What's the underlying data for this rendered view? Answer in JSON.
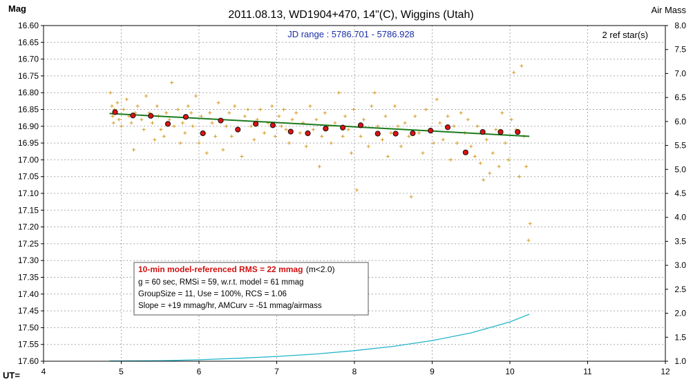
{
  "chart_data": {
    "type": "scatter",
    "title": "2011.08.13, WD1904+470, 14\"(C), Wiggins (Utah)",
    "ylabel": "Mag",
    "y2label": "Air Mass",
    "xlabel": "UT=",
    "xlim": [
      4,
      12
    ],
    "ylim": [
      17.6,
      16.6
    ],
    "y2lim": [
      1.0,
      8.0
    ],
    "x_ticks": [
      "4",
      "5",
      "6",
      "7",
      "8",
      "9",
      "10",
      "11",
      "12"
    ],
    "y_ticks": [
      "16.60",
      "16.65",
      "16.70",
      "16.75",
      "16.80",
      "16.85",
      "16.90",
      "16.95",
      "17.00",
      "17.05",
      "17.10",
      "17.15",
      "17.20",
      "17.25",
      "17.30",
      "17.35",
      "17.40",
      "17.45",
      "17.50",
      "17.55",
      "17.60"
    ],
    "y2_ticks": [
      "8.0",
      "7.5",
      "7.0",
      "6.5",
      "6.0",
      "5.5",
      "5.0",
      "4.5",
      "4.0",
      "3.5",
      "3.0",
      "2.5",
      "2.0",
      "1.5",
      "1.0"
    ],
    "grid": true,
    "jd_range": "JD range : 5786.701 - 5786.928",
    "ref_stars": "2 ref star(s)",
    "colors": {
      "raw_points": "#d49a1e",
      "group_means": "#dd1111",
      "model": "#1a7a1a",
      "airmass": "#22b5c8",
      "grid": "#a8a8a8"
    },
    "group_means": {
      "x": [
        4.92,
        5.15,
        5.38,
        5.6,
        5.83,
        6.05,
        6.28,
        6.5,
        6.73,
        6.95,
        7.18,
        7.4,
        7.63,
        7.85,
        8.08,
        8.3,
        8.53,
        8.75,
        8.98,
        9.2,
        9.43,
        9.65,
        9.88,
        10.1
      ],
      "y": [
        16.858,
        16.868,
        16.869,
        16.893,
        16.872,
        16.921,
        16.883,
        16.91,
        16.893,
        16.897,
        16.916,
        16.921,
        16.907,
        16.904,
        16.897,
        16.922,
        16.922,
        16.921,
        16.913,
        16.903,
        16.978,
        16.917,
        16.917,
        16.917
      ]
    },
    "model_line": {
      "x": [
        4.85,
        10.25
      ],
      "y": [
        16.862,
        16.93
      ]
    },
    "airmass_curve": {
      "x": [
        4.85,
        5.5,
        6.0,
        6.5,
        7.0,
        7.5,
        8.0,
        8.5,
        9.0,
        9.5,
        10.0,
        10.25
      ],
      "airmass": [
        1.005,
        1.01,
        1.03,
        1.06,
        1.1,
        1.15,
        1.22,
        1.31,
        1.43,
        1.59,
        1.82,
        1.98
      ]
    },
    "raw_points": {
      "x": [
        4.86,
        4.88,
        4.89,
        4.9,
        4.91,
        4.92,
        4.95,
        4.97,
        5.0,
        5.03,
        5.07,
        5.1,
        5.13,
        5.16,
        5.18,
        5.21,
        5.26,
        5.29,
        5.32,
        5.36,
        5.4,
        5.43,
        5.46,
        5.48,
        5.51,
        5.55,
        5.58,
        5.62,
        5.65,
        5.68,
        5.73,
        5.76,
        5.79,
        5.82,
        5.86,
        5.9,
        5.92,
        5.96,
        6.0,
        6.03,
        6.07,
        6.1,
        6.14,
        6.17,
        6.21,
        6.25,
        6.28,
        6.31,
        6.35,
        6.39,
        6.42,
        6.46,
        6.5,
        6.55,
        6.59,
        6.63,
        6.67,
        6.71,
        6.75,
        6.79,
        6.84,
        6.89,
        6.94,
        6.98,
        7.03,
        7.06,
        7.09,
        7.12,
        7.16,
        7.2,
        7.25,
        7.3,
        7.34,
        7.38,
        7.43,
        7.47,
        7.51,
        7.55,
        7.58,
        7.62,
        7.66,
        7.7,
        7.75,
        7.8,
        7.85,
        7.88,
        7.92,
        7.96,
        7.99,
        8.03,
        8.08,
        8.12,
        8.18,
        8.22,
        8.26,
        8.3,
        8.36,
        8.4,
        8.43,
        8.47,
        8.52,
        8.56,
        8.6,
        8.65,
        8.7,
        8.73,
        8.78,
        8.83,
        8.88,
        8.92,
        8.98,
        9.02,
        9.06,
        9.1,
        9.14,
        9.2,
        9.24,
        9.28,
        9.32,
        9.37,
        9.42,
        9.46,
        9.5,
        9.55,
        9.58,
        9.62,
        9.66,
        9.7,
        9.74,
        9.78,
        9.82,
        9.86,
        9.9,
        9.94,
        9.98,
        10.02,
        10.05,
        10.08,
        10.12,
        10.15,
        10.18,
        10.21,
        10.24,
        10.26
      ],
      "y": [
        16.8,
        16.84,
        16.87,
        16.89,
        16.85,
        16.86,
        16.83,
        16.88,
        16.9,
        16.85,
        16.82,
        16.87,
        16.89,
        16.97,
        16.86,
        16.84,
        16.88,
        16.91,
        16.81,
        16.86,
        16.89,
        16.94,
        16.84,
        16.87,
        16.91,
        16.93,
        16.86,
        16.88,
        16.77,
        16.9,
        16.85,
        16.95,
        16.89,
        16.92,
        16.84,
        16.86,
        16.9,
        16.81,
        16.95,
        16.87,
        16.92,
        16.98,
        16.86,
        16.89,
        16.93,
        16.83,
        16.88,
        16.97,
        16.9,
        16.86,
        16.93,
        16.84,
        16.91,
        16.99,
        16.87,
        16.85,
        16.9,
        16.94,
        16.88,
        16.85,
        16.92,
        16.89,
        16.84,
        16.93,
        16.87,
        16.9,
        16.85,
        16.91,
        16.95,
        16.88,
        16.86,
        16.92,
        16.89,
        16.96,
        16.84,
        16.91,
        16.88,
        17.02,
        16.93,
        16.86,
        16.9,
        16.95,
        16.89,
        16.8,
        16.93,
        16.87,
        16.91,
        16.98,
        16.85,
        17.09,
        16.93,
        16.88,
        16.96,
        16.84,
        16.8,
        16.9,
        16.94,
        16.87,
        16.99,
        16.92,
        16.84,
        16.9,
        16.96,
        16.89,
        16.93,
        17.11,
        16.87,
        16.92,
        16.98,
        16.85,
        16.91,
        16.95,
        16.82,
        16.89,
        16.94,
        16.87,
        17.0,
        16.9,
        16.95,
        16.86,
        16.92,
        16.88,
        16.96,
        16.99,
        16.9,
        17.01,
        17.06,
        16.94,
        17.04,
        16.98,
        16.91,
        17.02,
        16.86,
        16.95,
        17.0,
        16.88,
        16.74,
        16.91,
        17.05,
        16.72,
        16.93,
        17.02,
        17.24,
        17.19
      ]
    }
  }
}
